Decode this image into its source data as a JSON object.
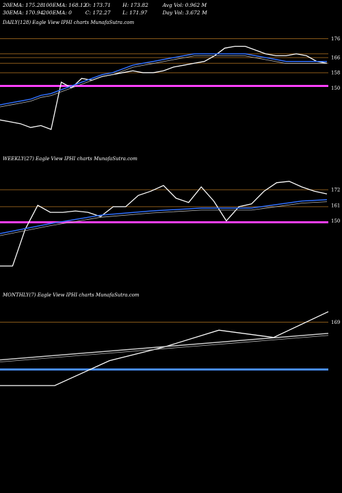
{
  "header": {
    "row1": [
      "20EMA: 175.28",
      "100EMA: 168.12",
      "O: 173.71",
      "H: 173.82",
      "Avg Vol: 0.962  M"
    ],
    "row2": [
      "30EMA: 170.94",
      "200EMA: 0",
      "C: 172.27",
      "L: 171.97",
      "Day Vol: 3.672  M"
    ]
  },
  "colors": {
    "price": "#ffffff",
    "ema": "#3070ff",
    "level": "#8a5a1a",
    "support": "#ff40ff",
    "monthly_band": "#4a90ff"
  },
  "chart_data": [
    {
      "type": "line",
      "title": "DAILY(128) Eagle  View  IPHI charts MunafaSutra.com",
      "y_ticks": [
        176,
        166,
        158,
        150
      ],
      "ylim": [
        124,
        182
      ],
      "levels": [
        176,
        168,
        166,
        163,
        158
      ],
      "support": 151,
      "series": [
        {
          "x": [
            0,
            4,
            8,
            12,
            16,
            20,
            24,
            28,
            32,
            36,
            40,
            44,
            48,
            52,
            56,
            60,
            64,
            68,
            72,
            76,
            80,
            84,
            88,
            92,
            96,
            100,
            104,
            108,
            112,
            116,
            120,
            124,
            128
          ],
          "values": [
            133,
            132,
            131,
            129,
            130,
            128,
            153,
            150,
            155,
            154,
            156,
            157,
            158,
            159,
            158,
            158,
            159,
            161,
            162,
            163,
            164,
            167,
            171,
            172,
            172,
            170,
            168,
            167,
            167,
            168,
            167,
            164,
            163
          ]
        },
        {
          "x": [
            0,
            4,
            8,
            12,
            16,
            20,
            24,
            28,
            32,
            36,
            40,
            44,
            48,
            52,
            56,
            60,
            64,
            68,
            72,
            76,
            80,
            84,
            88,
            92,
            96,
            100,
            104,
            108,
            112,
            116,
            120,
            124,
            128
          ],
          "values": [
            141,
            142,
            143,
            144,
            146,
            147,
            149,
            151,
            153,
            155,
            157,
            158,
            160,
            162,
            163,
            164,
            165,
            166,
            167,
            168,
            168,
            168,
            168,
            168,
            168,
            167,
            166,
            165,
            164,
            164,
            164,
            164,
            164
          ]
        }
      ]
    },
    {
      "type": "line",
      "title": "WEEKLY(27) Eagle  View  IPHI charts MunafaSutra.com",
      "y_ticks": [
        172,
        161,
        150
      ],
      "ylim": [
        110,
        190
      ],
      "levels": [
        172,
        160
      ],
      "support": 149,
      "series": [
        {
          "x": [
            0,
            1,
            2,
            3,
            4,
            5,
            6,
            7,
            8,
            9,
            10,
            11,
            12,
            13,
            14,
            15,
            16,
            17,
            18,
            19,
            20,
            21,
            22,
            23,
            24,
            25,
            26
          ],
          "values": [
            118,
            118,
            144,
            161,
            156,
            156,
            157,
            156,
            153,
            160,
            160,
            168,
            171,
            175,
            166,
            163,
            174,
            164,
            150,
            160,
            162,
            171,
            177,
            178,
            174,
            171,
            169
          ]
        },
        {
          "x": [
            0,
            4,
            8,
            12,
            16,
            20,
            24,
            26
          ],
          "values": [
            141,
            148,
            154,
            157,
            159,
            159,
            164,
            165
          ]
        }
      ]
    },
    {
      "type": "line",
      "title": "MONTHLY(7) Eagle  View  IPHI charts MunafaSutra.com",
      "y_ticks": [
        169
      ],
      "ylim": [
        50,
        195
      ],
      "levels": [
        169
      ],
      "support": 110,
      "series": [
        {
          "x": [
            0,
            1,
            2,
            3,
            4,
            5,
            6
          ],
          "values": [
            90,
            90,
            121,
            138,
            159,
            150,
            182
          ]
        },
        {
          "x": [
            0,
            6
          ],
          "values": [
            122,
            155
          ]
        }
      ]
    }
  ]
}
